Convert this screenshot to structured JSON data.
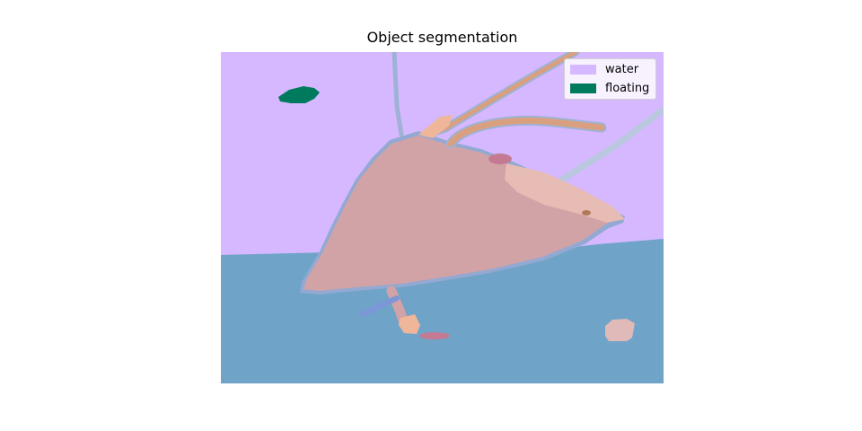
{
  "title": "Object segmentation",
  "legend": [
    {
      "label": "water",
      "color": "#d5b8ff"
    },
    {
      "label": "floating",
      "color": "#007a5c"
    }
  ],
  "colors": {
    "water": "#d5b8ff",
    "floating": "#007a5c",
    "lower_region": "#6fa3c7",
    "main_object": "#d2a3a6",
    "object_outline": "#93a9d2",
    "highlight": "#e6bcb5",
    "rod": "#d9a07f",
    "accent_pink": "#c47a93",
    "pale_blue_line": "#b9c8df",
    "small_patch": "#e0b9b9",
    "blue_stick": "#7d96d8",
    "peach": "#efb69a"
  }
}
